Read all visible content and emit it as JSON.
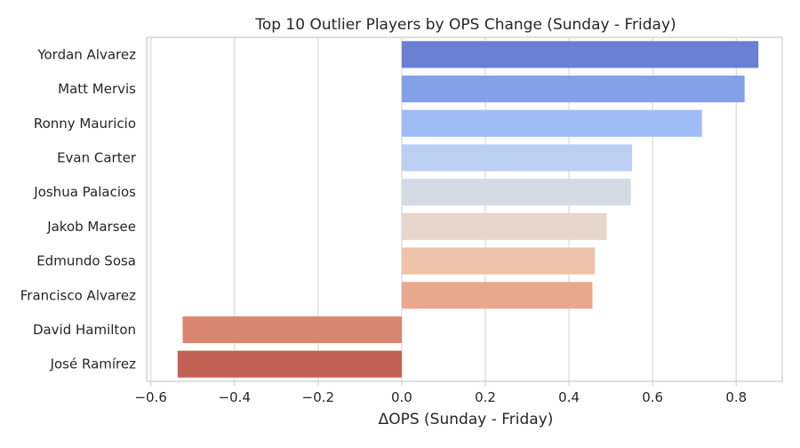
{
  "chart_data": {
    "type": "bar",
    "orientation": "horizontal",
    "title": "Top 10 Outlier Players by OPS Change (Sunday - Friday)",
    "xlabel": "ΔOPS (Sunday - Friday)",
    "ylabel": "",
    "xlim": [
      -0.61,
      0.91
    ],
    "xticks": [
      -0.6,
      -0.4,
      -0.2,
      0.0,
      0.2,
      0.4,
      0.6,
      0.8
    ],
    "xtick_labels": [
      "−0.6",
      "−0.4",
      "−0.2",
      "0.0",
      "0.2",
      "0.4",
      "0.6",
      "0.8"
    ],
    "grid": "vertical",
    "categories": [
      "Yordan Alvarez",
      "Matt Mervis",
      "Ronny Mauricio",
      "Evan Carter",
      "Joshua Palacios",
      "Jakob Marsee",
      "Edmundo Sosa",
      "Francisco Alvarez",
      "David Hamilton",
      "José Ramírez"
    ],
    "values": [
      0.853,
      0.82,
      0.718,
      0.551,
      0.548,
      0.49,
      0.462,
      0.456,
      -0.524,
      -0.536
    ],
    "colors": [
      "#6a80d4",
      "#84a1e8",
      "#a0bcf6",
      "#bcd0f4",
      "#d5dbe5",
      "#e6d6cb",
      "#efc2aa",
      "#e8a88d",
      "#da8772",
      "#c46155"
    ]
  }
}
